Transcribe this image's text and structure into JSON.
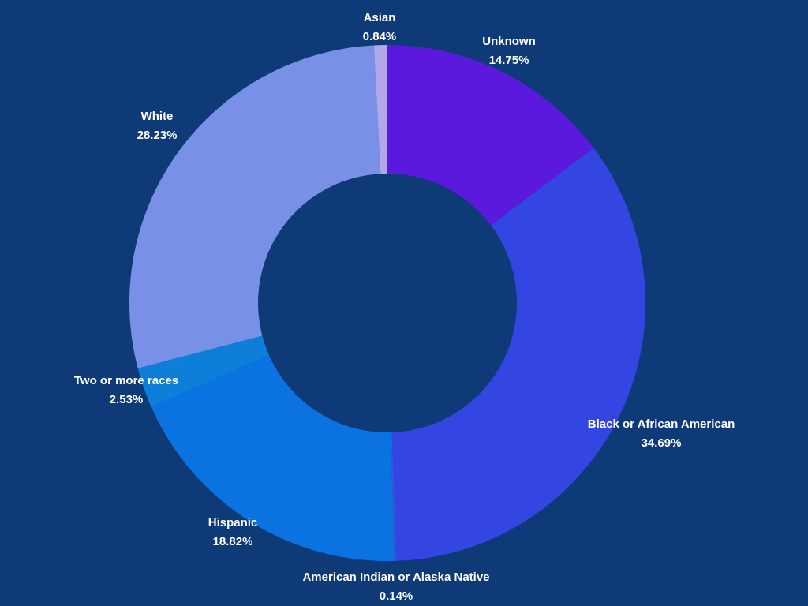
{
  "chart_data": {
    "type": "pie",
    "donut": true,
    "background": "#0f3a78",
    "label_color": "#ffffff",
    "slices": [
      {
        "label": "Unknown",
        "value": 14.75,
        "value_label": "14.75%",
        "color": "#5a19dc"
      },
      {
        "label": "Black or African American",
        "value": 34.69,
        "value_label": "34.69%",
        "color": "#3446e2"
      },
      {
        "label": "American Indian or Alaska Native",
        "value": 0.14,
        "value_label": "0.14%",
        "color": "#3357e0"
      },
      {
        "label": "Hispanic",
        "value": 18.82,
        "value_label": "18.82%",
        "color": "#0b72e2"
      },
      {
        "label": "Two or more races",
        "value": 2.53,
        "value_label": "2.53%",
        "color": "#0e7fd8"
      },
      {
        "label": "White",
        "value": 28.23,
        "value_label": "28.23%",
        "color": "#7891e6"
      },
      {
        "label": "Asian",
        "value": 0.84,
        "value_label": "0.84%",
        "color": "#b2a6ec"
      }
    ]
  }
}
